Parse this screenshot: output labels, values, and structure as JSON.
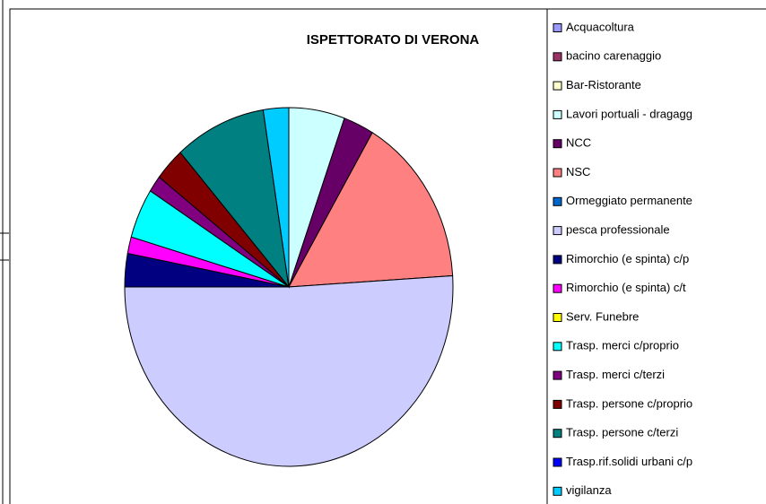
{
  "chart_data": {
    "type": "pie",
    "title": "ISPETTORATO DI VERONA",
    "categories": [
      "Acquacoltura",
      "bacino carenaggio",
      "Bar-Ristorante",
      "Lavori portuali - dragagg",
      "NCC",
      "NSC",
      "Ormeggiato permanente",
      "pesca professionale",
      "Rimorchio (e spinta) c/p",
      "Rimorchio (e spinta) c/t",
      "Serv. Funebre",
      "Trasp. merci c/proprio",
      "Trasp. merci c/terzi",
      "Trasp. persone c/proprio",
      "Trasp. persone c/terzi",
      "Trasp.rif.solidi urbani c/p",
      "vigilanza"
    ],
    "values": [
      0,
      0,
      0,
      5.5,
      3,
      15.5,
      0,
      51,
      3,
      1.5,
      0,
      4.5,
      1.5,
      3,
      9,
      0,
      2.5
    ],
    "colors": [
      "#9999ff",
      "#993366",
      "#ffffcc",
      "#ccffff",
      "#660066",
      "#ff8080",
      "#0066cc",
      "#ccccff",
      "#000080",
      "#ff00ff",
      "#ffff00",
      "#00ffff",
      "#800080",
      "#800000",
      "#008080",
      "#0000ff",
      "#00ccff"
    ]
  }
}
